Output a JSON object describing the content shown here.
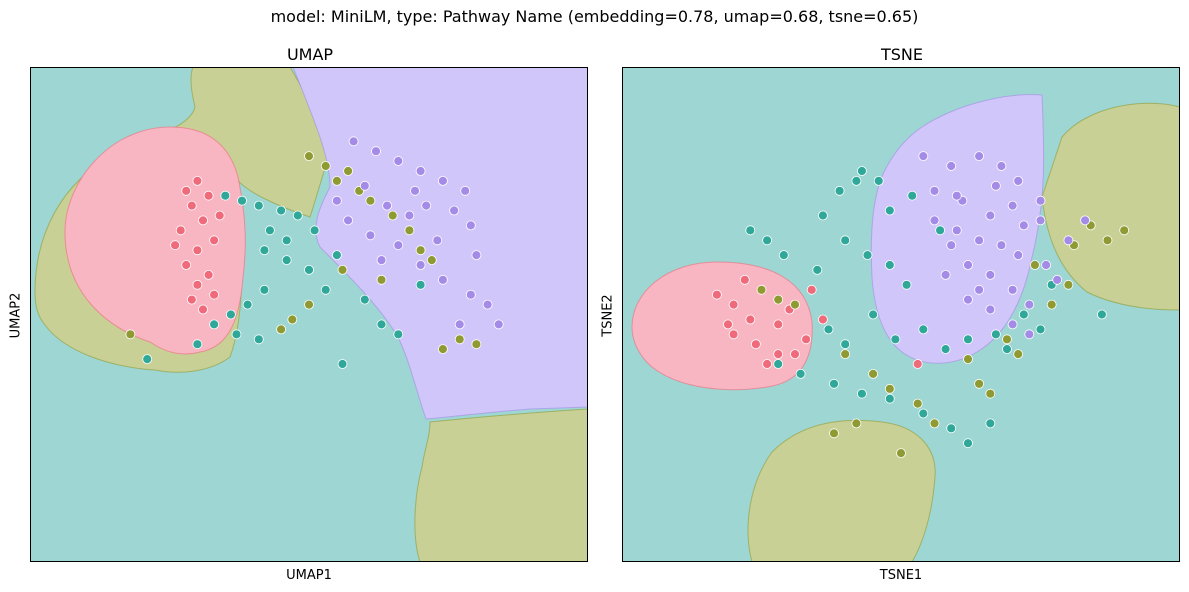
{
  "figure": {
    "suptitle": "model: MiniLM, type: Pathway Name (embedding=0.78, umap=0.68, tsne=0.65)"
  },
  "palette": {
    "red": "#ef6b7c",
    "olive": "#8f9b32",
    "teal": "#2fa89a",
    "purple": "#a58be8",
    "region_red": "#f8b6c3",
    "region_olive": "#c8d096",
    "region_teal": "#9dd6d2",
    "region_purple": "#d1c6fa"
  },
  "chart_data": [
    {
      "type": "scatter",
      "title": "UMAP",
      "xlabel": "UMAP1",
      "ylabel": "UMAP2",
      "xticks": [],
      "yticks": [],
      "grid": false,
      "background": "decision regions (4 classes)",
      "series": [
        {
          "color": "red",
          "points": [
            [
              30,
              23
            ],
            [
              28,
              25
            ],
            [
              32,
              26
            ],
            [
              29,
              28
            ],
            [
              31,
              31
            ],
            [
              27,
              33
            ],
            [
              33,
              35
            ],
            [
              30,
              37
            ],
            [
              28,
              40
            ],
            [
              32,
              42
            ],
            [
              30,
              44
            ],
            [
              29,
              47
            ],
            [
              34,
              30
            ],
            [
              26,
              36
            ],
            [
              33,
              46
            ],
            [
              31,
              49
            ]
          ]
        },
        {
          "color": "olive",
          "points": [
            [
              50,
              18
            ],
            [
              53,
              20
            ],
            [
              57,
              21
            ],
            [
              55,
              23
            ],
            [
              59,
              25
            ],
            [
              61,
              27
            ],
            [
              65,
              30
            ],
            [
              68,
              33
            ],
            [
              70,
              37
            ],
            [
              72,
              39
            ],
            [
              63,
              43
            ],
            [
              56,
              41
            ],
            [
              50,
              48
            ],
            [
              47,
              51
            ],
            [
              45,
              53
            ],
            [
              18,
              54
            ],
            [
              74,
              57
            ],
            [
              77,
              55
            ],
            [
              80,
              56
            ]
          ]
        },
        {
          "color": "teal",
          "points": [
            [
              35,
              26
            ],
            [
              38,
              27
            ],
            [
              41,
              28
            ],
            [
              45,
              29
            ],
            [
              48,
              30
            ],
            [
              43,
              33
            ],
            [
              46,
              35
            ],
            [
              51,
              33
            ],
            [
              42,
              37
            ],
            [
              46,
              39
            ],
            [
              50,
              41
            ],
            [
              55,
              38
            ],
            [
              53,
              45
            ],
            [
              42,
              45
            ],
            [
              39,
              48
            ],
            [
              36,
              50
            ],
            [
              33,
              52
            ],
            [
              37,
              54
            ],
            [
              41,
              55
            ],
            [
              30,
              56
            ],
            [
              60,
              47
            ],
            [
              63,
              52
            ],
            [
              66,
              54
            ],
            [
              56,
              60
            ],
            [
              21,
              59
            ],
            [
              70,
              44
            ]
          ]
        },
        {
          "color": "purple",
          "points": [
            [
              58,
              15
            ],
            [
              62,
              17
            ],
            [
              66,
              19
            ],
            [
              70,
              21
            ],
            [
              74,
              23
            ],
            [
              78,
              25
            ],
            [
              71,
              28
            ],
            [
              68,
              30
            ],
            [
              76,
              29
            ],
            [
              79,
              32
            ],
            [
              73,
              35
            ],
            [
              66,
              36
            ],
            [
              61,
              34
            ],
            [
              57,
              31
            ],
            [
              63,
              39
            ],
            [
              70,
              40
            ],
            [
              74,
              43
            ],
            [
              79,
              46
            ],
            [
              82,
              48
            ],
            [
              84,
              52
            ],
            [
              77,
              52
            ],
            [
              60,
              24
            ],
            [
              69,
              25
            ],
            [
              80,
              38
            ],
            [
              55,
              27
            ],
            [
              64,
              28
            ]
          ]
        }
      ]
    },
    {
      "type": "scatter",
      "title": "TSNE",
      "xlabel": "TSNE1",
      "ylabel": "TSNE2",
      "xticks": [],
      "yticks": [],
      "grid": false,
      "background": "decision regions (4 classes)",
      "series": [
        {
          "color": "red",
          "points": [
            [
              17,
              46
            ],
            [
              20,
              48
            ],
            [
              23,
              51
            ],
            [
              20,
              54
            ],
            [
              24,
              56
            ],
            [
              28,
              52
            ],
            [
              30,
              49
            ],
            [
              33,
              55
            ],
            [
              26,
              60
            ],
            [
              31,
              58
            ],
            [
              19,
              52
            ],
            [
              34,
              45
            ],
            [
              36,
              51
            ],
            [
              28,
              58
            ],
            [
              22,
              43
            ],
            [
              53,
              60
            ]
          ]
        },
        {
          "color": "olive",
          "points": [
            [
              25,
              45
            ],
            [
              28,
              47
            ],
            [
              31,
              48
            ],
            [
              40,
              58
            ],
            [
              45,
              62
            ],
            [
              48,
              65
            ],
            [
              53,
              68
            ],
            [
              56,
              72
            ],
            [
              62,
              59
            ],
            [
              64,
              64
            ],
            [
              66,
              66
            ],
            [
              71,
              58
            ],
            [
              69,
              55
            ],
            [
              42,
              72
            ],
            [
              38,
              74
            ],
            [
              50,
              78
            ],
            [
              77,
              48
            ],
            [
              80,
              44
            ],
            [
              84,
              32
            ],
            [
              87,
              35
            ],
            [
              90,
              33
            ],
            [
              81,
              36
            ],
            [
              74,
              40
            ]
          ]
        },
        {
          "color": "teal",
          "points": [
            [
              36,
              30
            ],
            [
              39,
              25
            ],
            [
              43,
              21
            ],
            [
              46,
              23
            ],
            [
              48,
              29
            ],
            [
              52,
              26
            ],
            [
              57,
              33
            ],
            [
              40,
              35
            ],
            [
              44,
              38
            ],
            [
              48,
              40
            ],
            [
              51,
              44
            ],
            [
              35,
              41
            ],
            [
              37,
              53
            ],
            [
              40,
              56
            ],
            [
              45,
              50
            ],
            [
              49,
              55
            ],
            [
              54,
              53
            ],
            [
              58,
              57
            ],
            [
              62,
              55
            ],
            [
              67,
              54
            ],
            [
              28,
              60
            ],
            [
              32,
              62
            ],
            [
              38,
              64
            ],
            [
              43,
              66
            ],
            [
              48,
              67
            ],
            [
              54,
              70
            ],
            [
              59,
              73
            ],
            [
              62,
              76
            ],
            [
              66,
              72
            ],
            [
              42,
              23
            ],
            [
              23,
              33
            ],
            [
              26,
              35
            ],
            [
              29,
              38
            ],
            [
              72,
              50
            ],
            [
              75,
              53
            ],
            [
              77,
              44
            ],
            [
              69,
              57
            ],
            [
              86,
              50
            ]
          ]
        },
        {
          "color": "purple",
          "points": [
            [
              54,
              18
            ],
            [
              59,
              20
            ],
            [
              64,
              18
            ],
            [
              67,
              24
            ],
            [
              61,
              27
            ],
            [
              56,
              31
            ],
            [
              60,
              33
            ],
            [
              64,
              35
            ],
            [
              68,
              36
            ],
            [
              72,
              32
            ],
            [
              75,
              27
            ],
            [
              70,
              28
            ],
            [
              66,
              30
            ],
            [
              59,
              36
            ],
            [
              62,
              40
            ],
            [
              66,
              42
            ],
            [
              70,
              45
            ],
            [
              73,
              48
            ],
            [
              76,
              40
            ],
            [
              78,
              43
            ],
            [
              58,
              42
            ],
            [
              62,
              47
            ],
            [
              66,
              49
            ],
            [
              70,
              52
            ],
            [
              73,
              54
            ],
            [
              80,
              35
            ],
            [
              83,
              31
            ],
            [
              75,
              31
            ],
            [
              60,
              26
            ],
            [
              56,
              25
            ],
            [
              68,
              20
            ],
            [
              71,
              23
            ],
            [
              64,
              45
            ],
            [
              71,
              38
            ]
          ]
        }
      ]
    }
  ]
}
